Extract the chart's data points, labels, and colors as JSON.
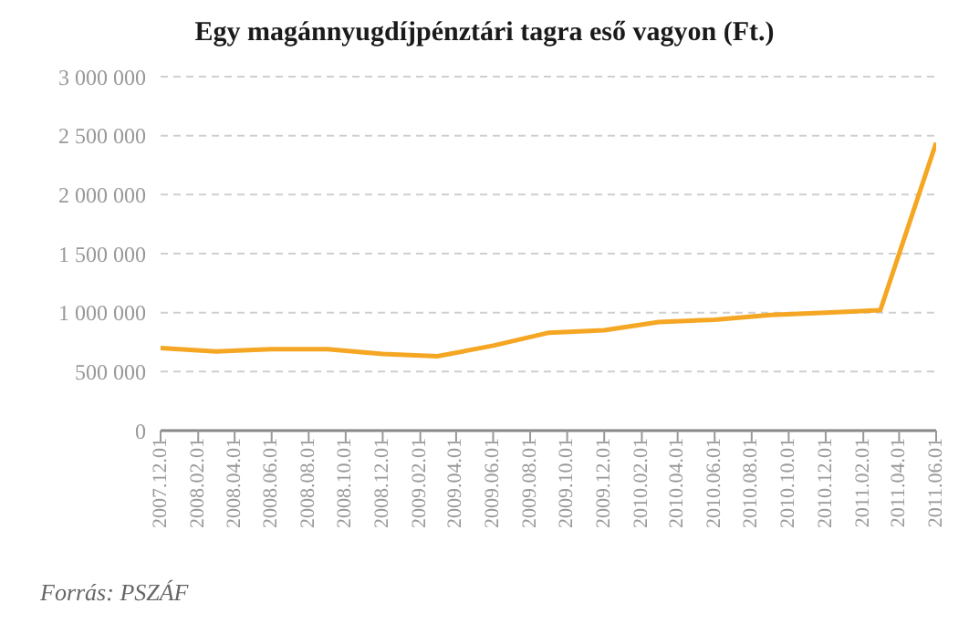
{
  "chart_data": {
    "type": "line",
    "title": "Egy magánnyugdíjpénztári tagra eső vagyon (Ft.)",
    "annotations": [
      "Forrás: PSZÁF"
    ],
    "x": [
      "2007-12-01",
      "2008-03-01",
      "2008-06-01",
      "2008-09-01",
      "2008-12-01",
      "2009-03-01",
      "2009-06-01",
      "2009-09-01",
      "2009-12-01",
      "2010-03-01",
      "2010-06-01",
      "2010-09-01",
      "2010-12-01",
      "2011-03-01",
      "2011-06-01"
    ],
    "series": [
      {
        "color": "#f5a623",
        "values": [
          700000,
          670000,
          690000,
          690000,
          650000,
          630000,
          720000,
          830000,
          850000,
          920000,
          940000,
          980000,
          1000000,
          1020000,
          2440000
        ]
      }
    ],
    "xlim": [
      "2007-12-01",
      "2011-06-01"
    ],
    "xticks": [
      {
        "value": "2007-12-01",
        "label": "2007.12.01"
      },
      {
        "value": "2008-02-01",
        "label": "2008.02.01"
      },
      {
        "value": "2008-04-01",
        "label": "2008.04.01"
      },
      {
        "value": "2008-06-01",
        "label": "2008.06.01"
      },
      {
        "value": "2008-08-01",
        "label": "2008.08.01"
      },
      {
        "value": "2008-10-01",
        "label": "2008.10.01"
      },
      {
        "value": "2008-12-01",
        "label": "2008.12.01"
      },
      {
        "value": "2009-02-01",
        "label": "2009.02.01"
      },
      {
        "value": "2009-04-01",
        "label": "2009.04.01"
      },
      {
        "value": "2009-06-01",
        "label": "2009.06.01"
      },
      {
        "value": "2009-08-01",
        "label": "2009.08.01"
      },
      {
        "value": "2009-10-01",
        "label": "2009.10.01"
      },
      {
        "value": "2009-12-01",
        "label": "2009.12.01"
      },
      {
        "value": "2010-02-01",
        "label": "2010.02.01"
      },
      {
        "value": "2010-04-01",
        "label": "2010.04.01"
      },
      {
        "value": "2010-06-01",
        "label": "2010.06.01"
      },
      {
        "value": "2010-08-01",
        "label": "2010.08.01"
      },
      {
        "value": "2010-10-01",
        "label": "2010.10.01"
      },
      {
        "value": "2010-12-01",
        "label": "2010.12.01"
      },
      {
        "value": "2011-02-01",
        "label": "2011.02.01"
      },
      {
        "value": "2011-04-01",
        "label": "2011.04.01"
      },
      {
        "value": "2011-06-01",
        "label": "2011.06.01"
      }
    ],
    "ylim": [
      0,
      3000000
    ],
    "yticks": [
      {
        "value": 0,
        "label": "0"
      },
      {
        "value": 500000,
        "label": "500 000"
      },
      {
        "value": 1000000,
        "label": "1 000 000"
      },
      {
        "value": 1500000,
        "label": "1 500 000"
      },
      {
        "value": 2000000,
        "label": "2 000 000"
      },
      {
        "value": 2500000,
        "label": "2 500 000"
      },
      {
        "value": 3000000,
        "label": "3 000 000"
      }
    ],
    "grid": "y",
    "legend": false,
    "marker": "none",
    "line_style": "solid"
  }
}
